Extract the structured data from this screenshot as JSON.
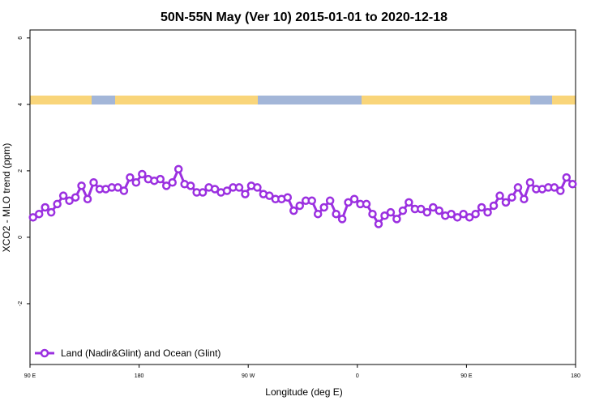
{
  "chart_data": {
    "type": "line",
    "title": "50N-55N May (Ver 10)   2015-01-01 to 2020-12-18",
    "x_label": "Longitude (deg E)",
    "y_label": "XCO2 - MLO trend (ppm)",
    "xlim": [
      90,
      540
    ],
    "ylim": [
      -3.83,
      6.24
    ],
    "xticks": [
      {
        "value": 90,
        "label": "90 E"
      },
      180,
      {
        "value": 270,
        "label": "90 W"
      },
      {
        "value": 360,
        "label": "0"
      },
      {
        "value": 450,
        "label": "90 E"
      },
      {
        "value": 540,
        "label": "180"
      }
    ],
    "yticks": [
      -2,
      0,
      2,
      4,
      6
    ],
    "legend_position": "bottom-left",
    "x": [
      92.5,
      97.5,
      102.5,
      107.5,
      112.5,
      117.5,
      122.5,
      127.5,
      132.5,
      137.5,
      142.5,
      147.5,
      152.5,
      157.5,
      162.5,
      167.5,
      172.5,
      177.5,
      182.5,
      187.5,
      192.5,
      197.5,
      202.5,
      207.5,
      212.5,
      217.5,
      222.5,
      227.5,
      232.5,
      237.5,
      242.5,
      247.5,
      252.5,
      257.5,
      262.5,
      267.5,
      272.5,
      277.5,
      282.5,
      287.5,
      292.5,
      297.5,
      302.5,
      307.5,
      312.5,
      317.5,
      322.5,
      327.5,
      332.5,
      337.5,
      342.5,
      347.5,
      352.5,
      357.5,
      362.5,
      367.5,
      372.5,
      377.5,
      382.5,
      387.5,
      392.5,
      397.5,
      402.5,
      407.5,
      412.5,
      417.5,
      422.5,
      427.5,
      432.5,
      437.5,
      442.5,
      447.5,
      452.5,
      457.5,
      462.5,
      467.5,
      472.5,
      477.5,
      482.5,
      487.5,
      492.5,
      497.5,
      502.5,
      507.5,
      512.5,
      517.5,
      522.5,
      527.5,
      532.5,
      537.5
    ],
    "series": [
      {
        "name": "Land (Nadir&Glint) and Ocean (Glint)",
        "color": "#9b30e0",
        "values": [
          0.6,
          0.7,
          0.9,
          0.75,
          1.0,
          1.25,
          1.1,
          1.2,
          1.55,
          1.15,
          1.65,
          1.45,
          1.45,
          1.5,
          1.5,
          1.4,
          1.8,
          1.65,
          1.9,
          1.75,
          1.7,
          1.75,
          1.55,
          1.65,
          2.05,
          1.6,
          1.55,
          1.35,
          1.35,
          1.5,
          1.45,
          1.35,
          1.4,
          1.5,
          1.5,
          1.3,
          1.55,
          1.5,
          1.3,
          1.25,
          1.15,
          1.15,
          1.2,
          0.8,
          0.95,
          1.1,
          1.1,
          0.7,
          0.9,
          1.1,
          0.7,
          0.55,
          1.05,
          1.15,
          1.0,
          1.0,
          0.7,
          0.4,
          0.65,
          0.75,
          0.55,
          0.8,
          1.05,
          0.85,
          0.85,
          0.75,
          0.9,
          0.8,
          0.65,
          0.7,
          0.6,
          0.7,
          0.6,
          0.7,
          0.9,
          0.75,
          0.95,
          1.25,
          1.05,
          1.2,
          1.5,
          1.15,
          1.65,
          1.45,
          1.45,
          1.5,
          1.5,
          1.4,
          1.8,
          1.6
        ]
      }
    ]
  }
}
